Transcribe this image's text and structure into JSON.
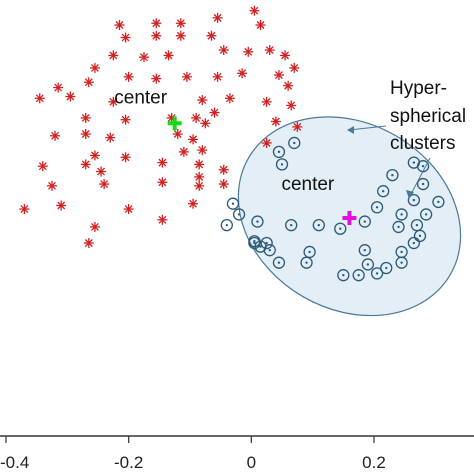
{
  "chart_data": {
    "type": "scatter",
    "xlim": [
      -0.4,
      0.35
    ],
    "ylim": [
      -0.4,
      0.82
    ],
    "xticks": [
      {
        "value": -0.4,
        "label": "-0.4"
      },
      {
        "value": -0.2,
        "label": "-0.2"
      },
      {
        "value": 0,
        "label": "0"
      },
      {
        "value": 0.2,
        "label": "0.2"
      }
    ],
    "grid": false,
    "series": [
      {
        "marker": "asterisk",
        "color": "#d42020",
        "points": [
          [
            0.005,
            0.79
          ],
          [
            -0.215,
            0.75
          ],
          [
            -0.155,
            0.755
          ],
          [
            -0.115,
            0.755
          ],
          [
            -0.055,
            0.77
          ],
          [
            0.015,
            0.75
          ],
          [
            -0.205,
            0.715
          ],
          [
            -0.155,
            0.72
          ],
          [
            -0.115,
            0.72
          ],
          [
            -0.065,
            0.72
          ],
          [
            -0.175,
            0.66
          ],
          [
            -0.225,
            0.665
          ],
          [
            -0.135,
            0.665
          ],
          [
            -0.255,
            0.63
          ],
          [
            -0.045,
            0.68
          ],
          [
            -0.005,
            0.675
          ],
          [
            0.03,
            0.68
          ],
          [
            0.055,
            0.665
          ],
          [
            -0.155,
            0.6
          ],
          [
            -0.2,
            0.605
          ],
          [
            -0.105,
            0.605
          ],
          [
            -0.315,
            0.575
          ],
          [
            -0.265,
            0.59
          ],
          [
            -0.055,
            0.605
          ],
          [
            -0.015,
            0.615
          ],
          [
            0.045,
            0.61
          ],
          [
            0.07,
            0.63
          ],
          [
            0.06,
            0.58
          ],
          [
            -0.345,
            0.545
          ],
          [
            -0.295,
            0.55
          ],
          [
            -0.225,
            0.535
          ],
          [
            -0.08,
            0.54
          ],
          [
            -0.035,
            0.545
          ],
          [
            0.025,
            0.535
          ],
          [
            0.065,
            0.525
          ],
          [
            -0.27,
            0.49
          ],
          [
            -0.205,
            0.485
          ],
          [
            -0.13,
            0.49
          ],
          [
            -0.09,
            0.49
          ],
          [
            -0.06,
            0.505
          ],
          [
            -0.075,
            0.475
          ],
          [
            0.04,
            0.48
          ],
          [
            0.075,
            0.465
          ],
          [
            -0.32,
            0.44
          ],
          [
            -0.27,
            0.445
          ],
          [
            -0.23,
            0.435
          ],
          [
            -0.12,
            0.445
          ],
          [
            -0.095,
            0.43
          ],
          [
            0.025,
            0.42
          ],
          [
            -0.255,
            0.385
          ],
          [
            -0.205,
            0.38
          ],
          [
            -0.11,
            0.395
          ],
          [
            -0.085,
            0.36
          ],
          [
            -0.08,
            0.4
          ],
          [
            -0.34,
            0.355
          ],
          [
            -0.27,
            0.36
          ],
          [
            -0.245,
            0.34
          ],
          [
            -0.145,
            0.365
          ],
          [
            -0.085,
            0.325
          ],
          [
            -0.045,
            0.345
          ],
          [
            -0.325,
            0.3
          ],
          [
            -0.24,
            0.305
          ],
          [
            -0.145,
            0.31
          ],
          [
            -0.085,
            0.3
          ],
          [
            -0.045,
            0.305
          ],
          [
            -0.37,
            0.235
          ],
          [
            -0.31,
            0.245
          ],
          [
            -0.2,
            0.235
          ],
          [
            -0.095,
            0.25
          ],
          [
            -0.255,
            0.185
          ],
          [
            -0.145,
            0.205
          ],
          [
            -0.265,
            0.14
          ]
        ]
      },
      {
        "marker": "dotted-circle",
        "color": "#2a5a78",
        "points": [
          [
            0.07,
            0.42
          ],
          [
            0.045,
            0.395
          ],
          [
            0.05,
            0.36
          ],
          [
            0.265,
            0.365
          ],
          [
            0.28,
            0.355
          ],
          [
            0.23,
            0.33
          ],
          [
            0.28,
            0.305
          ],
          [
            0.215,
            0.285
          ],
          [
            -0.03,
            0.25
          ],
          [
            0.265,
            0.26
          ],
          [
            0.205,
            0.24
          ],
          [
            0.305,
            0.255
          ],
          [
            -0.02,
            0.22
          ],
          [
            0.01,
            0.2
          ],
          [
            0.245,
            0.22
          ],
          [
            0.285,
            0.22
          ],
          [
            -0.04,
            0.19
          ],
          [
            0.065,
            0.19
          ],
          [
            0.11,
            0.19
          ],
          [
            0.145,
            0.18
          ],
          [
            0.185,
            0.2
          ],
          [
            0.24,
            0.185
          ],
          [
            0.27,
            0.19
          ],
          [
            0.005,
            0.14
          ],
          [
            0.025,
            0.14
          ],
          [
            0.005,
            0.145
          ],
          [
            0.275,
            0.16
          ],
          [
            0.265,
            0.14
          ],
          [
            0.015,
            0.13
          ],
          [
            0.03,
            0.12
          ],
          [
            0.095,
            0.115
          ],
          [
            0.185,
            0.12
          ],
          [
            0.245,
            0.115
          ],
          [
            0.045,
            0.085
          ],
          [
            0.09,
            0.085
          ],
          [
            0.19,
            0.08
          ],
          [
            0.245,
            0.085
          ],
          [
            0.22,
            0.07
          ],
          [
            0.15,
            0.05
          ],
          [
            0.175,
            0.05
          ],
          [
            0.205,
            0.055
          ]
        ]
      }
    ],
    "centroids": [
      {
        "x": -0.125,
        "y": 0.475,
        "color": "#18d818",
        "label": "center"
      },
      {
        "x": 0.16,
        "y": 0.21,
        "color": "#e010e0",
        "label": "center"
      }
    ],
    "ellipse": {
      "cx": 0.16,
      "cy": 0.215,
      "rx": 0.19,
      "ry": 0.26,
      "angle_deg": 30,
      "fill": "#e3eef6",
      "stroke": "#4a7a9a"
    },
    "annotation": {
      "lines": [
        "Hyper-",
        "spherical",
        "clusters"
      ]
    }
  }
}
